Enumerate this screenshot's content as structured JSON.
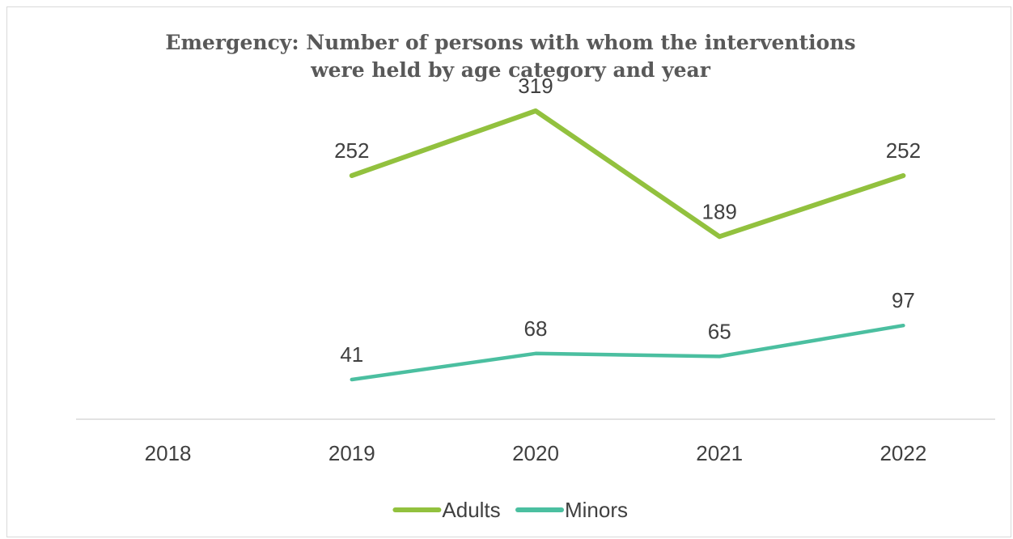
{
  "chart_data": {
    "type": "line",
    "title": "Emergency: Number of persons with whom the interventions were held by age category and year",
    "title_lines": [
      "Emergency: Number of persons with whom the interventions",
      "were held by age category and year"
    ],
    "categories": [
      "2018",
      "2019",
      "2020",
      "2021",
      "2022"
    ],
    "series": [
      {
        "name": "Adults",
        "color": "#92c13e",
        "values": [
          null,
          252,
          319,
          189,
          252
        ]
      },
      {
        "name": "Minors",
        "color": "#4bbfa0",
        "values": [
          null,
          41,
          68,
          65,
          97
        ]
      }
    ],
    "ylim": [
      0,
      350
    ],
    "grid": false,
    "legend_position": "bottom",
    "xlabel": "",
    "ylabel": ""
  }
}
